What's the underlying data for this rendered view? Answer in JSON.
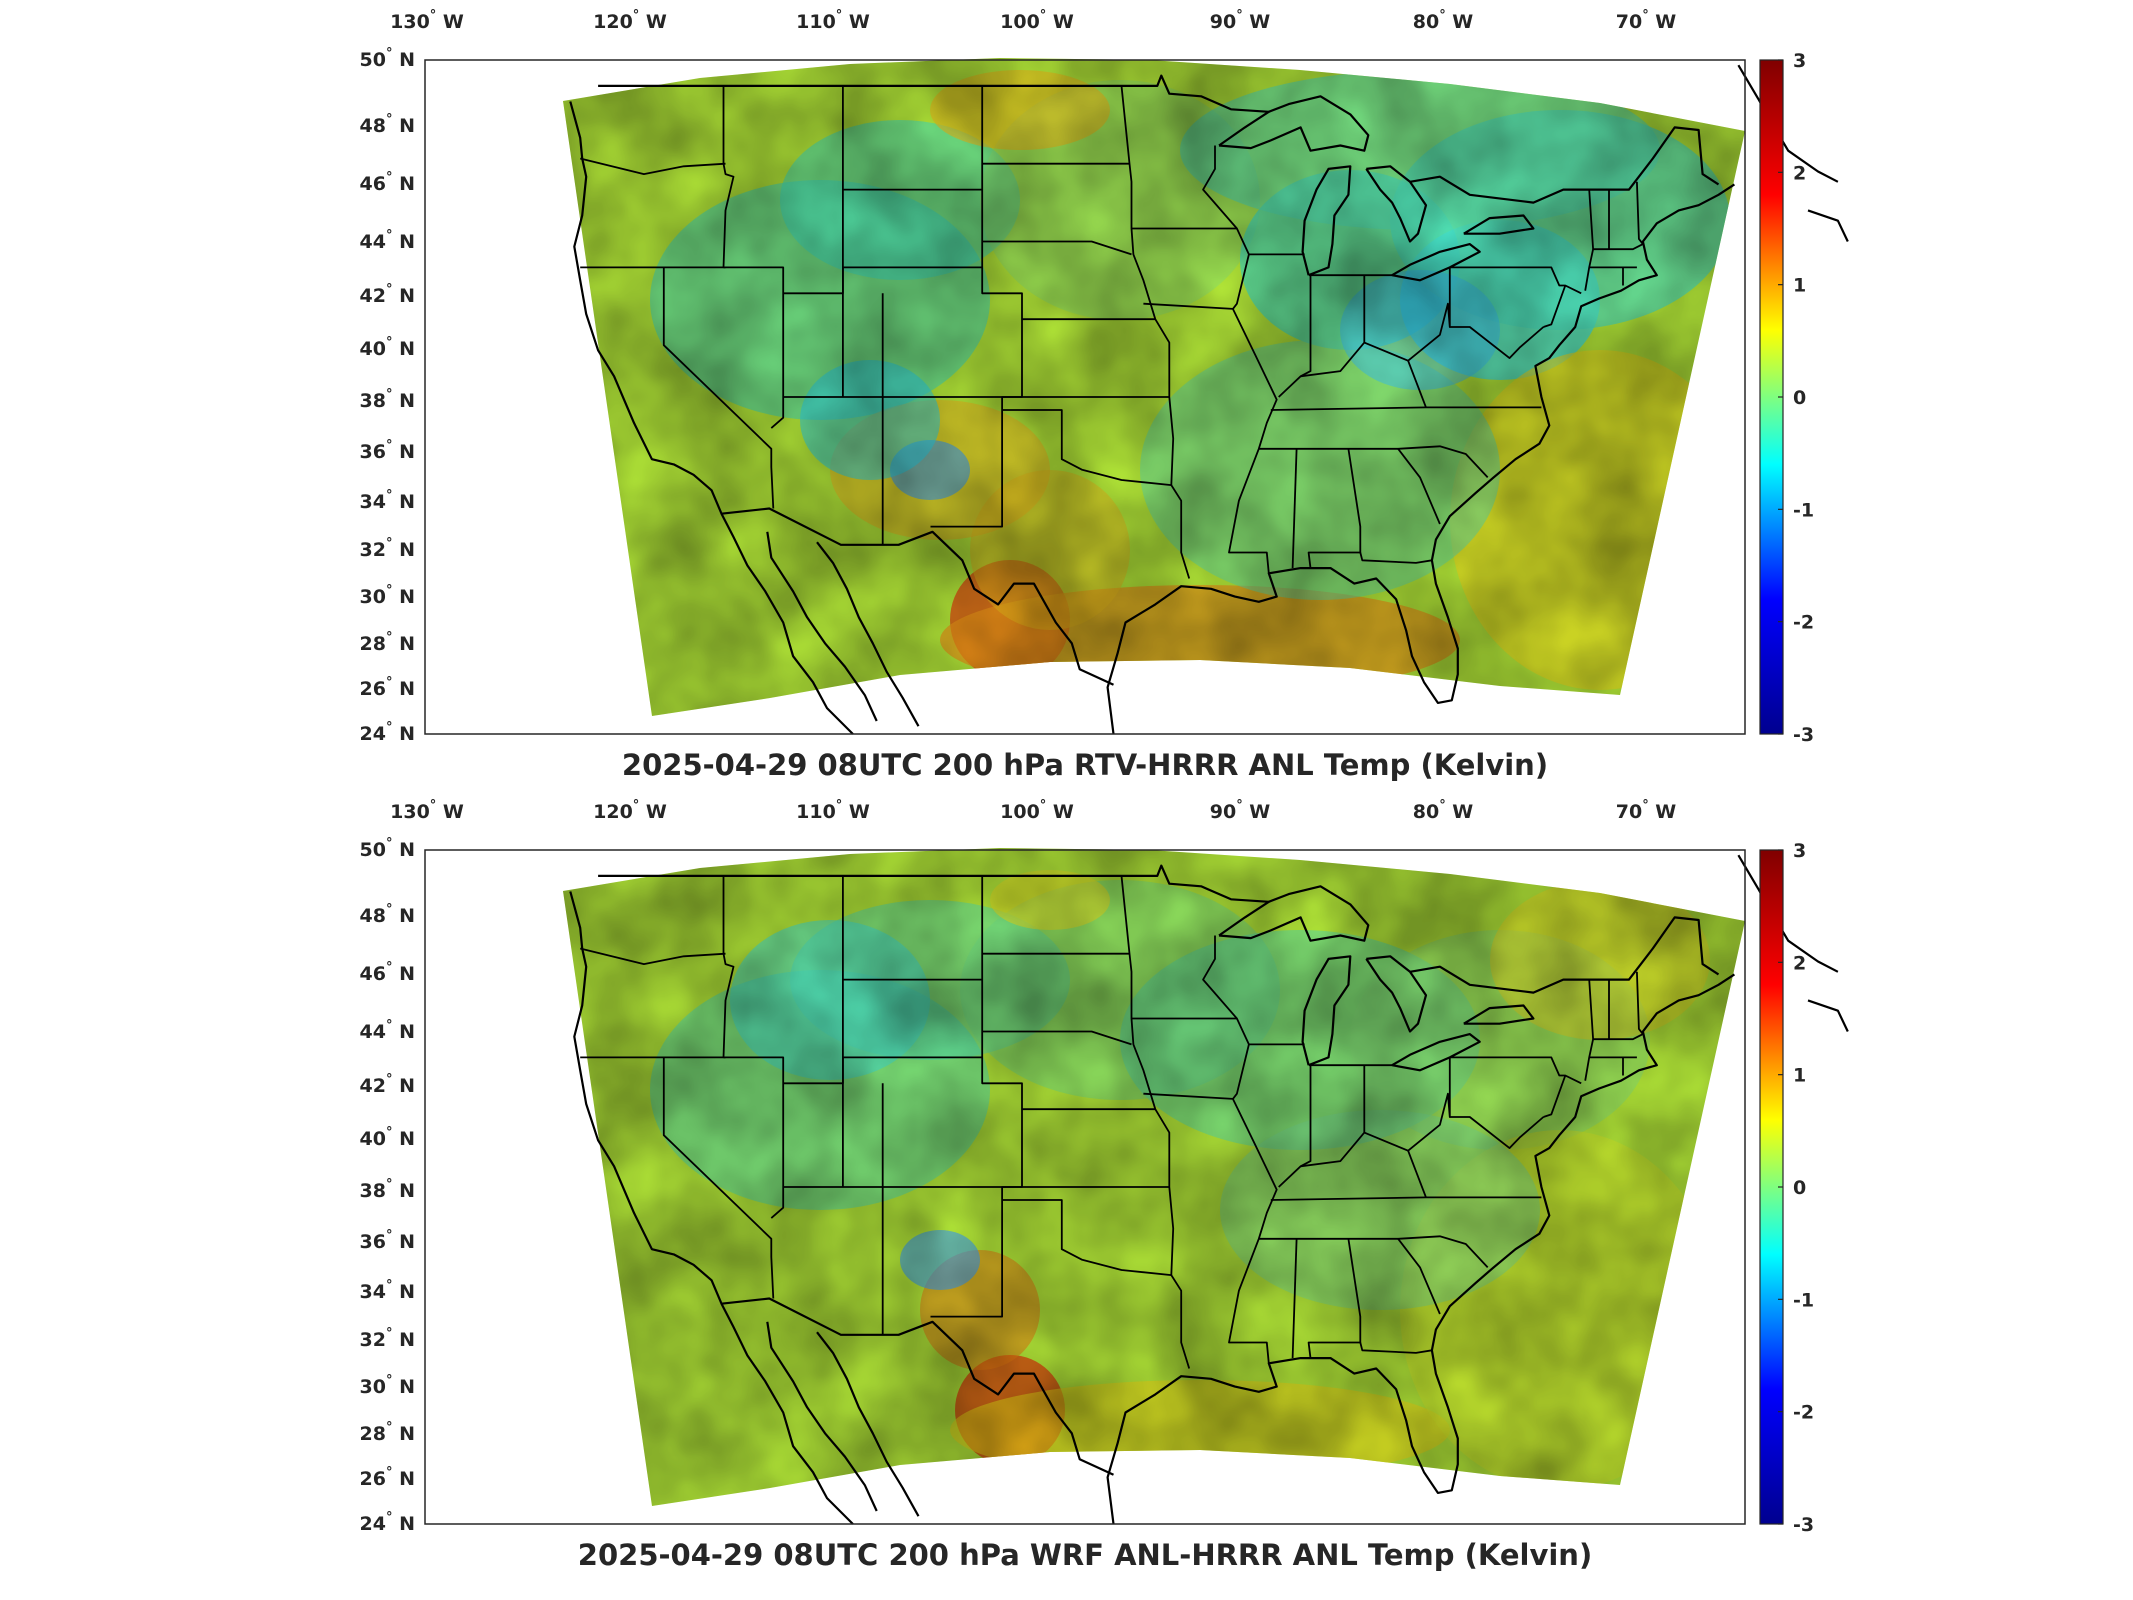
{
  "panels": [
    {
      "title": "2025-04-29 08UTC 200 hPa RTV-HRRR ANL Temp (Kelvin)",
      "variant": "rtv"
    },
    {
      "title": "2025-04-29 08UTC 200 hPa WRF ANL-HRRR ANL Temp (Kelvin)",
      "variant": "wrf"
    }
  ],
  "lon_ticks": [
    {
      "deg": "130",
      "hemi": "W",
      "value": -130
    },
    {
      "deg": "120",
      "hemi": "W",
      "value": -120
    },
    {
      "deg": "110",
      "hemi": "W",
      "value": -110
    },
    {
      "deg": "100",
      "hemi": "W",
      "value": -100
    },
    {
      "deg": "90",
      "hemi": "W",
      "value": -90
    },
    {
      "deg": "80",
      "hemi": "W",
      "value": -80
    },
    {
      "deg": "70",
      "hemi": "W",
      "value": -70
    }
  ],
  "lat_ticks": [
    {
      "deg": "50",
      "hemi": "N",
      "value": 50
    },
    {
      "deg": "48",
      "hemi": "N",
      "value": 48
    },
    {
      "deg": "46",
      "hemi": "N",
      "value": 46
    },
    {
      "deg": "44",
      "hemi": "N",
      "value": 44
    },
    {
      "deg": "42",
      "hemi": "N",
      "value": 42
    },
    {
      "deg": "40",
      "hemi": "N",
      "value": 40
    },
    {
      "deg": "38",
      "hemi": "N",
      "value": 38
    },
    {
      "deg": "36",
      "hemi": "N",
      "value": 36
    },
    {
      "deg": "34",
      "hemi": "N",
      "value": 34
    },
    {
      "deg": "32",
      "hemi": "N",
      "value": 32
    },
    {
      "deg": "30",
      "hemi": "N",
      "value": 30
    },
    {
      "deg": "28",
      "hemi": "N",
      "value": 28
    },
    {
      "deg": "26",
      "hemi": "N",
      "value": 26
    },
    {
      "deg": "24",
      "hemi": "N",
      "value": 24
    }
  ],
  "colorbar": {
    "ticks": [
      "3",
      "2",
      "1",
      "0",
      "-1",
      "-2",
      "-3"
    ],
    "range": [
      -3,
      3
    ],
    "colormap": "jet",
    "colors": [
      "#00008f",
      "#0000ff",
      "#00ffff",
      "#ffff00",
      "#ff0000",
      "#800000"
    ]
  },
  "symbols": {
    "degree": "°"
  }
}
